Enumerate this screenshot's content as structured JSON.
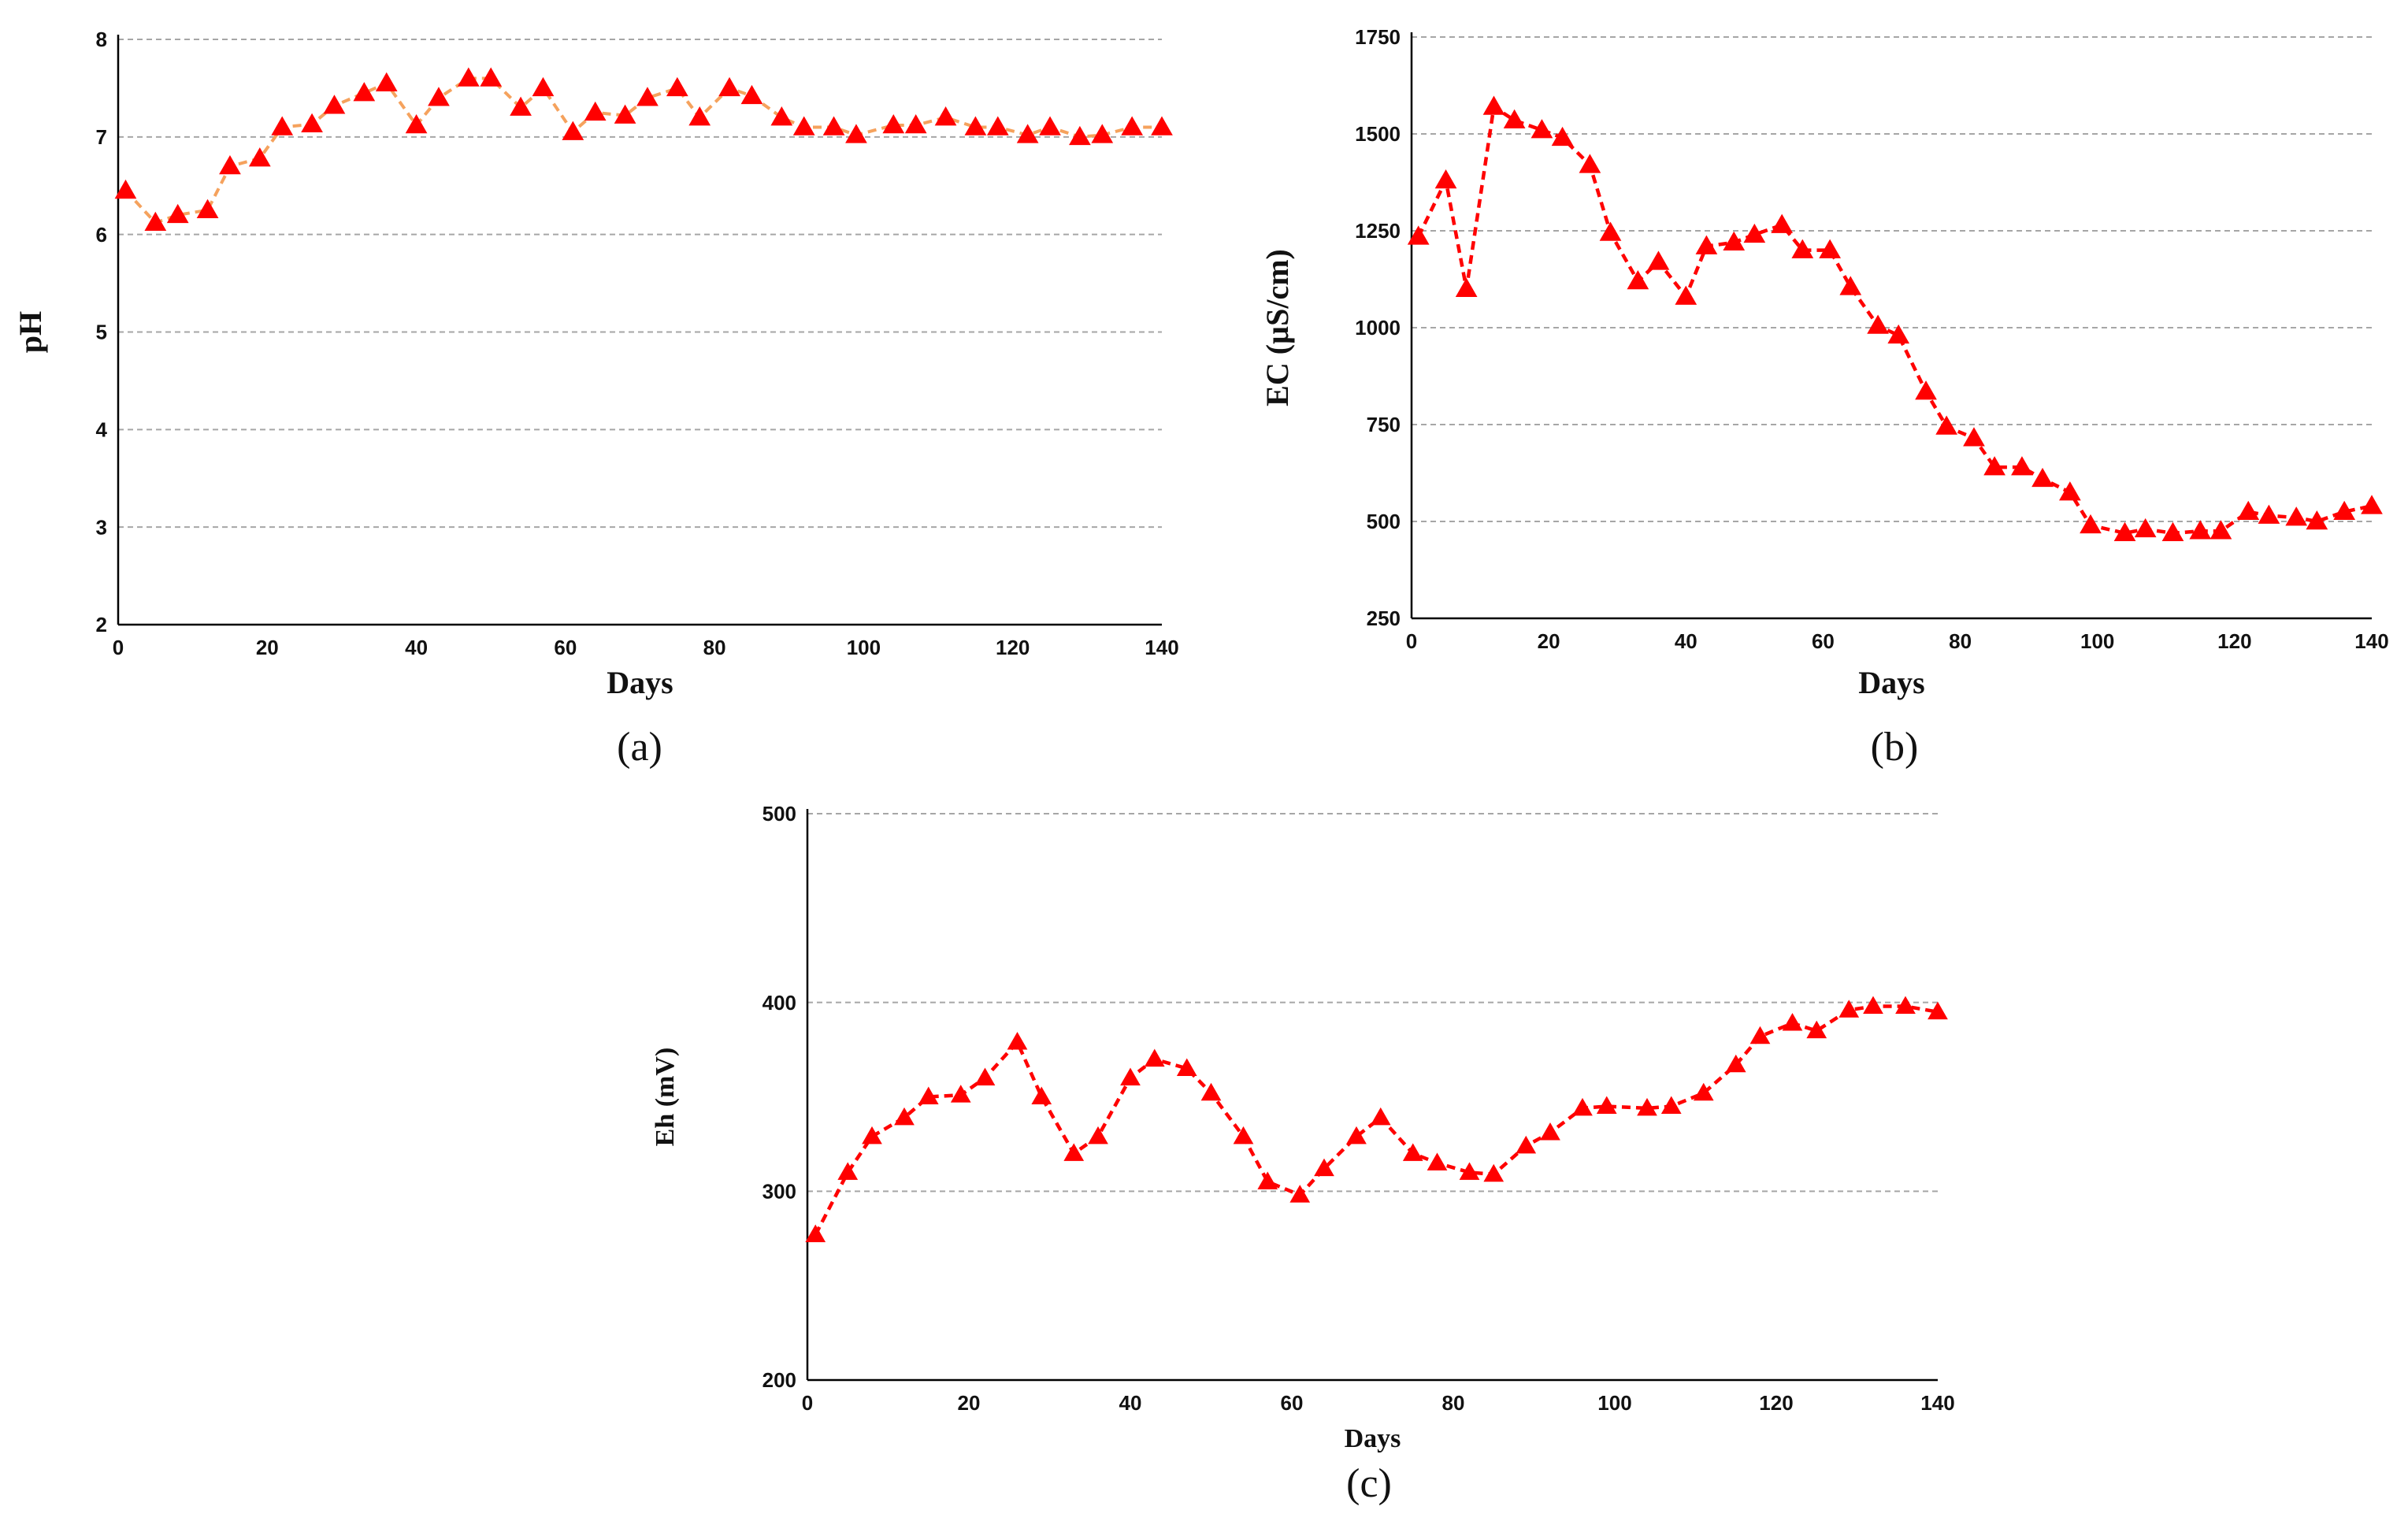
{
  "colors": {
    "series": "#ff0000",
    "line_a": "#f5a25d",
    "grid": "#a6a6a6",
    "axis": "#000000"
  },
  "chart_data": [
    {
      "type": "line",
      "panel_label": "(a)",
      "xlabel": "Days",
      "ylabel": "pH",
      "xlim": [
        0,
        140
      ],
      "ylim": [
        2,
        8
      ],
      "x_ticks": [
        0,
        20,
        40,
        60,
        80,
        100,
        120,
        140
      ],
      "y_ticks": [
        2,
        3,
        4,
        5,
        6,
        7,
        8
      ],
      "x_tick_labels": [
        "0",
        "20",
        "40",
        "60",
        "80",
        "100",
        "120",
        "140"
      ],
      "y_tick_labels": [
        "2",
        "3",
        "4",
        "5",
        "6",
        "7",
        "8"
      ],
      "grid": true,
      "series": [
        {
          "name": "pH",
          "marker": "triangle",
          "x": [
            1,
            5,
            8,
            12,
            15,
            19,
            22,
            26,
            29,
            33,
            36,
            40,
            43,
            47,
            50,
            54,
            57,
            61,
            64,
            68,
            71,
            75,
            78,
            82,
            85,
            89,
            92,
            96,
            99,
            104,
            107,
            111,
            115,
            118,
            122,
            125,
            129,
            132,
            136,
            140
          ],
          "y": [
            6.45,
            6.12,
            6.2,
            6.25,
            6.7,
            6.78,
            7.1,
            7.13,
            7.32,
            7.45,
            7.55,
            7.12,
            7.4,
            7.6,
            7.6,
            7.3,
            7.5,
            7.05,
            7.25,
            7.22,
            7.4,
            7.5,
            7.2,
            7.5,
            7.42,
            7.2,
            7.1,
            7.1,
            7.02,
            7.12,
            7.12,
            7.2,
            7.1,
            7.1,
            7.02,
            7.1,
            7.0,
            7.02,
            7.1,
            7.1
          ]
        }
      ]
    },
    {
      "type": "line",
      "panel_label": "(b)",
      "xlabel": "Days",
      "ylabel": "EC  (µS/cm)",
      "xlim": [
        0,
        140
      ],
      "ylim": [
        250,
        1750
      ],
      "x_ticks": [
        0,
        20,
        40,
        60,
        80,
        100,
        120,
        140
      ],
      "y_ticks": [
        250,
        500,
        750,
        1000,
        1250,
        1500,
        1750
      ],
      "x_tick_labels": [
        "0",
        "20",
        "40",
        "60",
        "80",
        "100",
        "120",
        "140"
      ],
      "y_tick_labels": [
        "250",
        "500",
        "750",
        "1000",
        "1250",
        "1500",
        "1750"
      ],
      "grid": true,
      "series": [
        {
          "name": "EC",
          "marker": "triangle",
          "x": [
            1,
            5,
            8,
            12,
            15,
            19,
            22,
            26,
            29,
            33,
            36,
            40,
            43,
            47,
            50,
            54,
            57,
            61,
            64,
            68,
            71,
            75,
            78,
            82,
            85,
            89,
            92,
            96,
            99,
            104,
            107,
            111,
            115,
            118,
            122,
            125,
            129,
            132,
            136,
            140
          ],
          "y": [
            1235,
            1380,
            1100,
            1570,
            1535,
            1510,
            1490,
            1420,
            1245,
            1120,
            1170,
            1080,
            1210,
            1220,
            1240,
            1265,
            1200,
            1200,
            1105,
            1005,
            980,
            835,
            745,
            715,
            640,
            640,
            610,
            575,
            490,
            470,
            480,
            470,
            475,
            475,
            525,
            515,
            510,
            500,
            525,
            540
          ]
        }
      ]
    },
    {
      "type": "line",
      "panel_label": "(c)",
      "xlabel": "Days",
      "ylabel": "Eh (mV)",
      "xlim": [
        0,
        140
      ],
      "ylim": [
        200,
        500
      ],
      "x_ticks": [
        0,
        20,
        40,
        60,
        80,
        100,
        120,
        140
      ],
      "y_ticks": [
        200,
        300,
        400,
        500
      ],
      "x_tick_labels": [
        "0",
        "20",
        "40",
        "60",
        "80",
        "100",
        "120",
        "140"
      ],
      "y_tick_labels": [
        "200",
        "300",
        "400",
        "500"
      ],
      "grid": true,
      "series": [
        {
          "name": "Eh",
          "marker": "triangle",
          "x": [
            1,
            5,
            8,
            12,
            15,
            19,
            22,
            26,
            29,
            33,
            36,
            40,
            43,
            47,
            50,
            54,
            57,
            61,
            64,
            68,
            71,
            75,
            78,
            82,
            85,
            89,
            92,
            96,
            99,
            104,
            107,
            111,
            115,
            118,
            122,
            125,
            129,
            132,
            136,
            140
          ],
          "y": [
            277,
            310,
            329,
            339,
            350,
            351,
            360,
            379,
            350,
            320,
            329,
            360,
            370,
            365,
            352,
            329,
            305,
            298,
            312,
            329,
            339,
            320,
            315,
            310,
            309,
            324,
            331,
            344,
            345,
            344,
            345,
            352,
            367,
            382,
            389,
            385,
            396,
            398,
            398,
            395
          ]
        }
      ]
    }
  ]
}
